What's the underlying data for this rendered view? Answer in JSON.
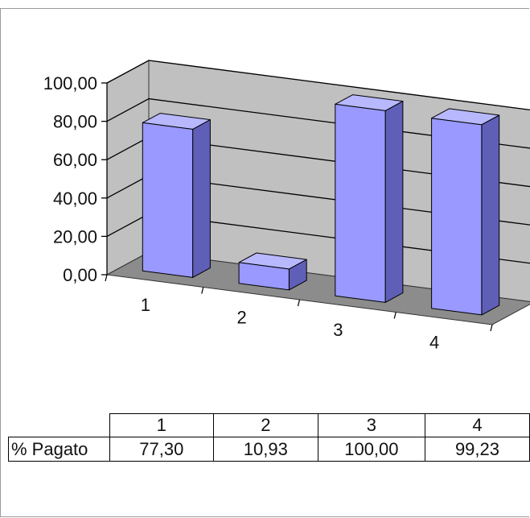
{
  "chart_data": {
    "type": "bar",
    "title": "",
    "xlabel": "",
    "ylabel": "",
    "categories": [
      "1",
      "2",
      "3",
      "4"
    ],
    "series": [
      {
        "name": "% Pagato",
        "values": [
          77.3,
          10.93,
          100.0,
          99.23
        ]
      }
    ],
    "ylim": [
      0,
      100
    ],
    "yticks": [
      "0,00",
      "20,00",
      "40,00",
      "60,00",
      "80,00",
      "100,00"
    ],
    "grid": true,
    "legend": "none",
    "colors": {
      "bar_front": "#9999ff",
      "bar_side": "#5f5fb8",
      "bar_top": "#b8b8ff",
      "wall": "#c0c0c0",
      "floor": "#8c8c8c"
    }
  },
  "table": {
    "header": [
      "1",
      "2",
      "3",
      "4"
    ],
    "row_label": "% Pagato",
    "row_values": [
      "77,30",
      "10,93",
      "100,00",
      "99,23"
    ]
  }
}
